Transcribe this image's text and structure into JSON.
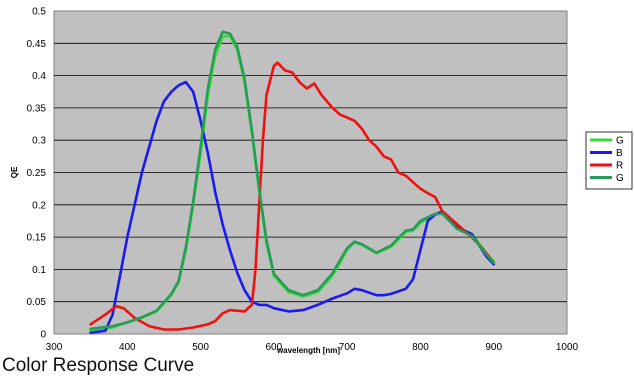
{
  "caption": "Color Response Curve",
  "chart_data": {
    "type": "line",
    "title": "",
    "xlabel": "wavelength [nm]",
    "ylabel": "QE",
    "xlim": [
      300,
      1000
    ],
    "ylim": [
      0,
      0.5
    ],
    "x_ticks": [
      300,
      400,
      500,
      600,
      700,
      800,
      900,
      1000
    ],
    "y_ticks": [
      0,
      0.05,
      0.1,
      0.15,
      0.2,
      0.25,
      0.3,
      0.35,
      0.4,
      0.45,
      0.5
    ],
    "x_tick_labels": [
      "300",
      "400",
      "500",
      "600",
      "700",
      "800",
      "900",
      "1000"
    ],
    "y_tick_labels": [
      "0",
      "0.05",
      "0.1",
      "0.15",
      "0.2",
      "0.25",
      "0.3",
      "0.35",
      "0.4",
      "0.45",
      "0.5"
    ],
    "grid": true,
    "plot_background": "#c0c0c0",
    "legend_position": "right",
    "series": [
      {
        "name": "G",
        "color": "#33dd33",
        "points": [
          [
            350,
            0.005
          ],
          [
            380,
            0.01
          ],
          [
            400,
            0.018
          ],
          [
            420,
            0.025
          ],
          [
            440,
            0.035
          ],
          [
            460,
            0.06
          ],
          [
            470,
            0.08
          ],
          [
            480,
            0.13
          ],
          [
            490,
            0.2
          ],
          [
            500,
            0.28
          ],
          [
            510,
            0.37
          ],
          [
            520,
            0.43
          ],
          [
            530,
            0.46
          ],
          [
            540,
            0.462
          ],
          [
            550,
            0.44
          ],
          [
            560,
            0.39
          ],
          [
            570,
            0.31
          ],
          [
            580,
            0.22
          ],
          [
            590,
            0.14
          ],
          [
            600,
            0.09
          ],
          [
            620,
            0.065
          ],
          [
            640,
            0.058
          ],
          [
            660,
            0.065
          ],
          [
            680,
            0.09
          ],
          [
            700,
            0.13
          ],
          [
            710,
            0.142
          ],
          [
            720,
            0.138
          ],
          [
            740,
            0.125
          ],
          [
            760,
            0.135
          ],
          [
            780,
            0.158
          ],
          [
            790,
            0.16
          ],
          [
            800,
            0.172
          ],
          [
            820,
            0.185
          ],
          [
            830,
            0.188
          ],
          [
            850,
            0.165
          ],
          [
            870,
            0.155
          ],
          [
            890,
            0.125
          ],
          [
            900,
            0.112
          ]
        ]
      },
      {
        "name": "B",
        "color": "#1a1aee",
        "points": [
          [
            350,
            0.002
          ],
          [
            370,
            0.005
          ],
          [
            380,
            0.03
          ],
          [
            390,
            0.09
          ],
          [
            400,
            0.15
          ],
          [
            420,
            0.25
          ],
          [
            440,
            0.33
          ],
          [
            450,
            0.36
          ],
          [
            460,
            0.375
          ],
          [
            470,
            0.385
          ],
          [
            480,
            0.39
          ],
          [
            490,
            0.375
          ],
          [
            500,
            0.33
          ],
          [
            510,
            0.28
          ],
          [
            520,
            0.22
          ],
          [
            530,
            0.17
          ],
          [
            540,
            0.13
          ],
          [
            550,
            0.095
          ],
          [
            560,
            0.068
          ],
          [
            570,
            0.05
          ],
          [
            580,
            0.045
          ],
          [
            590,
            0.045
          ],
          [
            600,
            0.04
          ],
          [
            620,
            0.035
          ],
          [
            640,
            0.037
          ],
          [
            660,
            0.045
          ],
          [
            680,
            0.055
          ],
          [
            700,
            0.063
          ],
          [
            710,
            0.07
          ],
          [
            720,
            0.068
          ],
          [
            740,
            0.06
          ],
          [
            750,
            0.06
          ],
          [
            760,
            0.062
          ],
          [
            780,
            0.07
          ],
          [
            790,
            0.085
          ],
          [
            800,
            0.13
          ],
          [
            810,
            0.175
          ],
          [
            820,
            0.185
          ],
          [
            830,
            0.19
          ],
          [
            840,
            0.18
          ],
          [
            850,
            0.165
          ],
          [
            870,
            0.155
          ],
          [
            890,
            0.12
          ],
          [
            900,
            0.108
          ]
        ]
      },
      {
        "name": "R",
        "color": "#ee1111",
        "points": [
          [
            350,
            0.015
          ],
          [
            370,
            0.03
          ],
          [
            385,
            0.043
          ],
          [
            395,
            0.04
          ],
          [
            410,
            0.025
          ],
          [
            430,
            0.012
          ],
          [
            450,
            0.007
          ],
          [
            470,
            0.007
          ],
          [
            490,
            0.01
          ],
          [
            510,
            0.015
          ],
          [
            520,
            0.02
          ],
          [
            530,
            0.032
          ],
          [
            540,
            0.037
          ],
          [
            560,
            0.035
          ],
          [
            570,
            0.045
          ],
          [
            575,
            0.1
          ],
          [
            580,
            0.2
          ],
          [
            585,
            0.3
          ],
          [
            590,
            0.37
          ],
          [
            600,
            0.415
          ],
          [
            605,
            0.42
          ],
          [
            615,
            0.408
          ],
          [
            625,
            0.405
          ],
          [
            635,
            0.39
          ],
          [
            645,
            0.38
          ],
          [
            655,
            0.388
          ],
          [
            665,
            0.37
          ],
          [
            680,
            0.35
          ],
          [
            690,
            0.34
          ],
          [
            700,
            0.335
          ],
          [
            710,
            0.33
          ],
          [
            720,
            0.318
          ],
          [
            730,
            0.3
          ],
          [
            740,
            0.29
          ],
          [
            750,
            0.275
          ],
          [
            760,
            0.27
          ],
          [
            770,
            0.25
          ],
          [
            780,
            0.245
          ],
          [
            790,
            0.235
          ],
          [
            800,
            0.225
          ],
          [
            810,
            0.218
          ],
          [
            820,
            0.212
          ],
          [
            830,
            0.19
          ],
          [
            840,
            0.18
          ],
          [
            850,
            0.17
          ],
          [
            860,
            0.16
          ],
          [
            870,
            0.15
          ],
          [
            880,
            0.138
          ],
          [
            890,
            0.125
          ],
          [
            900,
            0.11
          ]
        ]
      },
      {
        "name": "G",
        "color": "#2a9a5a",
        "points": [
          [
            350,
            0.008
          ],
          [
            380,
            0.012
          ],
          [
            400,
            0.018
          ],
          [
            420,
            0.026
          ],
          [
            440,
            0.036
          ],
          [
            460,
            0.062
          ],
          [
            470,
            0.082
          ],
          [
            480,
            0.135
          ],
          [
            490,
            0.205
          ],
          [
            500,
            0.29
          ],
          [
            510,
            0.38
          ],
          [
            520,
            0.44
          ],
          [
            530,
            0.468
          ],
          [
            540,
            0.465
          ],
          [
            550,
            0.445
          ],
          [
            560,
            0.395
          ],
          [
            570,
            0.315
          ],
          [
            580,
            0.225
          ],
          [
            590,
            0.145
          ],
          [
            600,
            0.093
          ],
          [
            620,
            0.068
          ],
          [
            640,
            0.06
          ],
          [
            660,
            0.068
          ],
          [
            680,
            0.094
          ],
          [
            700,
            0.133
          ],
          [
            710,
            0.143
          ],
          [
            720,
            0.139
          ],
          [
            740,
            0.126
          ],
          [
            760,
            0.137
          ],
          [
            780,
            0.16
          ],
          [
            790,
            0.162
          ],
          [
            800,
            0.175
          ],
          [
            820,
            0.186
          ],
          [
            830,
            0.186
          ],
          [
            850,
            0.163
          ],
          [
            870,
            0.152
          ],
          [
            890,
            0.123
          ],
          [
            900,
            0.11
          ]
        ]
      }
    ]
  }
}
